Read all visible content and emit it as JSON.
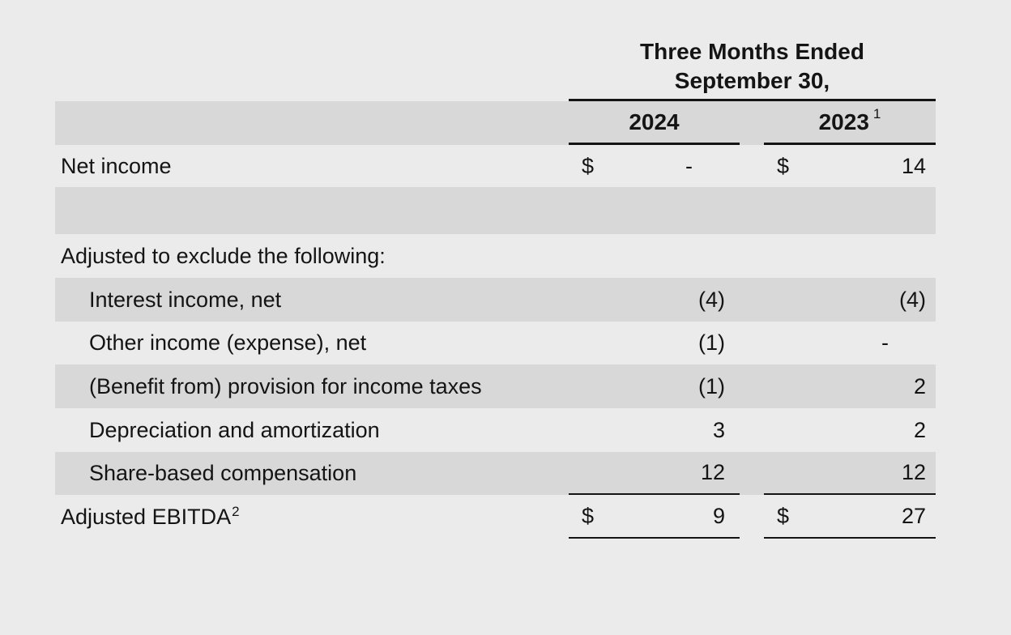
{
  "colors": {
    "background": "#ebebeb",
    "band": "#d8d8d8",
    "text": "#141414"
  },
  "table": {
    "currency": "$",
    "header": {
      "title_line1": "Three Months Ended",
      "title_line2": "September 30,",
      "year_2024": "2024",
      "year_2023": "2023",
      "year_2023_footnote": "1"
    },
    "rows": [
      {
        "label": "Net income",
        "v2024": "-",
        "v2023": "14"
      },
      {
        "label": ""
      },
      {
        "label": "Adjusted to exclude the following:"
      },
      {
        "label": "Interest income, net",
        "v2024": "(4)",
        "v2023": "(4)"
      },
      {
        "label": "Other income (expense), net",
        "v2024": "(1)",
        "v2023": "-"
      },
      {
        "label": "(Benefit from) provision for income taxes",
        "v2024": "(1)",
        "v2023": "2"
      },
      {
        "label": "Depreciation and amortization",
        "v2024": "3",
        "v2023": "2"
      },
      {
        "label": "Share-based compensation",
        "v2024": "12",
        "v2023": "12"
      },
      {
        "label": "Adjusted EBITDA",
        "label_footnote": "2",
        "v2024": "9",
        "v2023": "27"
      }
    ]
  }
}
